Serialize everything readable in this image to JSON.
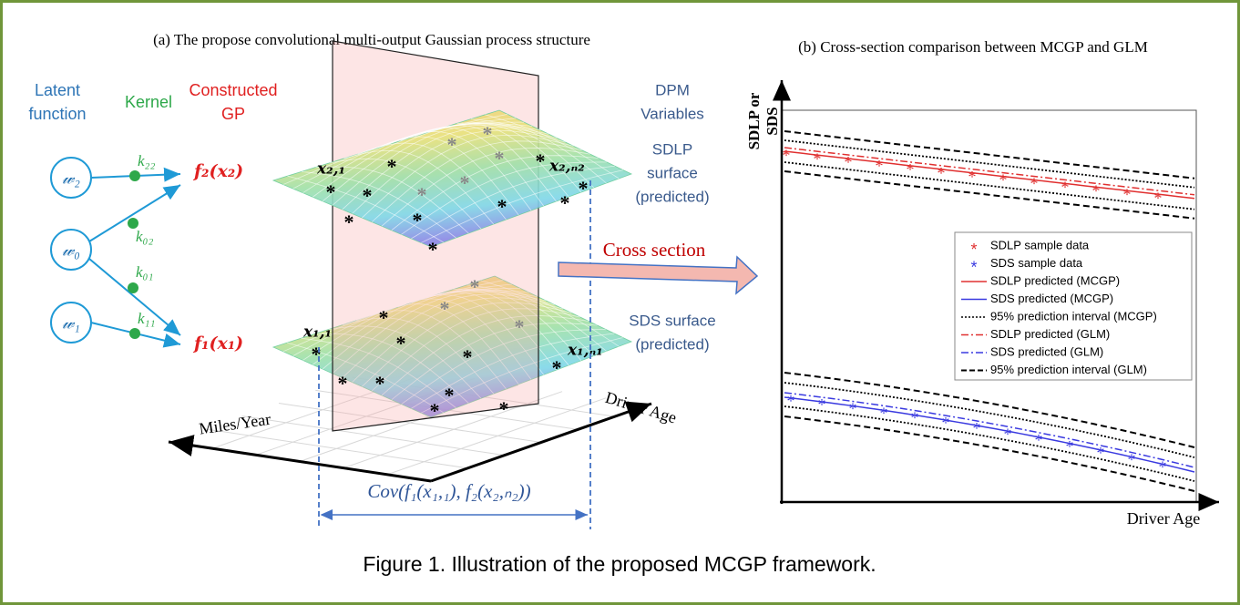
{
  "caption": "Figure 1. Illustration of the proposed MCGP framework.",
  "panel_a": {
    "title": "(a) The propose convolutional multi-output Gaussian process structure",
    "headers": {
      "latent_1": "Latent",
      "latent_2": "function",
      "kernel": "Kernel",
      "gp_1": "Constructed",
      "gp_2": "GP",
      "dpm_1": "DPM",
      "dpm_2": "Variables"
    },
    "nodes": [
      "𝓌₂",
      "𝓌₀",
      "𝓌₁"
    ],
    "kernels": [
      "k₂₂",
      "k₀₂",
      "k₀₁",
      "k₁₁"
    ],
    "gps": [
      "f₂(x₂)",
      "f₁(x₁)"
    ],
    "points": [
      "x₂,₁",
      "x₂,ₙ₂",
      "x₁,₁",
      "x₁,ₙ₁"
    ],
    "surfaces": {
      "sdlp_1": "SDLP",
      "sdlp_2": "surface",
      "sdlp_3": "(predicted)",
      "sds_1": "SDS surface",
      "sds_2": "(predicted)"
    },
    "axes": {
      "miles": "Miles/Year",
      "age": "Driver Age"
    },
    "covariance": "Cov(f₁(x₁,₁), f₂(x₂,ₙ₂))",
    "cross_section": "Cross section"
  },
  "panel_b": {
    "title": "(b) Cross-section comparison between MCGP and GLM",
    "y_label_1": "SDLP or",
    "y_label_2": "SDS",
    "x_label": "Driver Age",
    "legend": [
      "SDLP sample data",
      "SDS sample data",
      "SDLP predicted (MCGP)",
      "SDS predicted (MCGP)",
      "95% prediction interval (MCGP)",
      "SDLP predicted (GLM)",
      "SDS predicted (GLM)",
      "95% prediction interval (GLM)"
    ]
  }
}
